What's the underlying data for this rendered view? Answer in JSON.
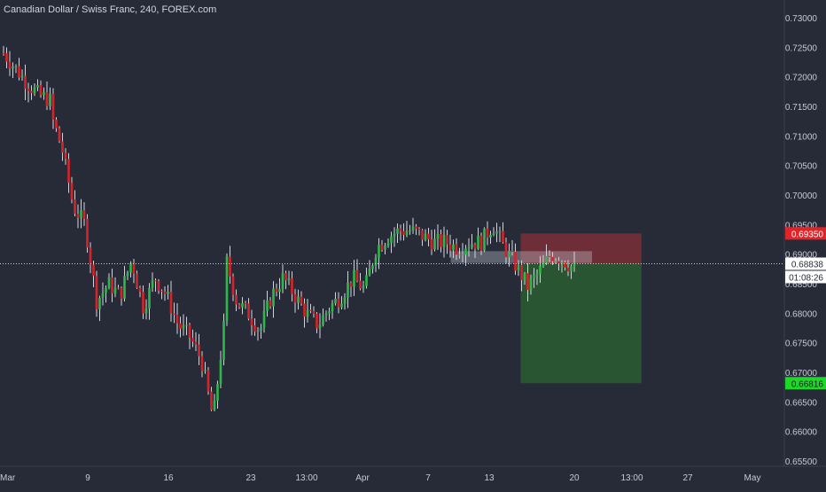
{
  "header": {
    "symbol_title": "Canadian Dollar / Swiss Franc, 240, FOREX.com"
  },
  "colors": {
    "background": "#272b38",
    "axis_text": "#c7cad3",
    "bull": "#2fb84a",
    "bear": "#d6252a",
    "wick": "#d1d4dc",
    "stop_zone": "#7a2f38",
    "target_zone": "#2a5a33",
    "stop_label": "#e0242a",
    "target_label": "#1fd62a",
    "price_line": "#d1d4dc"
  },
  "price_axis": {
    "ticks": [
      "0.73000",
      "0.72500",
      "0.72000",
      "0.71500",
      "0.71000",
      "0.70500",
      "0.70000",
      "0.69500",
      "0.69000",
      "0.68500",
      "0.68000",
      "0.67500",
      "0.67000",
      "0.66500",
      "0.66000",
      "0.65500"
    ],
    "current_price": "0.68838",
    "countdown": "01:08:26",
    "stop_label": "0.69350",
    "target_label": "0.66816"
  },
  "time_axis": {
    "ticks": [
      "Mar",
      "9",
      "16",
      "23",
      "13:00",
      "Apr",
      "7",
      "13",
      "20",
      "13:00",
      "27",
      "May"
    ]
  },
  "chart_data": {
    "type": "candlestick",
    "title": "Canadian Dollar / Swiss Franc, 240, FOREX.com",
    "ylim": [
      0.6525,
      0.733
    ],
    "x_range": [
      "2020-03-02",
      "2020-05-01"
    ],
    "current_price": 0.68838,
    "countdown": "01:08:26",
    "position": {
      "type": "short",
      "entry": 0.68838,
      "stop": 0.6935,
      "target": 0.66816
    },
    "support_resistance_zone": [
      0.6885,
      0.6905
    ],
    "swing_path": [
      [
        "2020-03-02",
        0.724
      ],
      [
        "2020-03-04",
        0.719
      ],
      [
        "2020-03-05",
        0.717
      ],
      [
        "2020-03-06",
        0.716
      ],
      [
        "2020-03-06",
        0.714
      ],
      [
        "2020-03-07",
        0.708
      ],
      [
        "2020-03-08",
        0.698
      ],
      [
        "2020-03-09",
        0.695
      ],
      [
        "2020-03-10",
        0.682
      ],
      [
        "2020-03-11",
        0.685
      ],
      [
        "2020-03-12",
        0.683
      ],
      [
        "2020-03-13",
        0.689
      ],
      [
        "2020-03-14",
        0.681
      ],
      [
        "2020-03-15",
        0.686
      ],
      [
        "2020-03-16",
        0.683
      ],
      [
        "2020-03-17",
        0.678
      ],
      [
        "2020-03-18",
        0.676
      ],
      [
        "2020-03-19",
        0.672
      ],
      [
        "2020-03-20",
        0.662
      ],
      [
        "2020-03-21",
        0.679
      ],
      [
        "2020-03-21",
        0.69
      ],
      [
        "2020-03-22",
        0.682
      ],
      [
        "2020-03-23",
        0.68
      ],
      [
        "2020-03-24",
        0.677
      ],
      [
        "2020-03-25",
        0.683
      ],
      [
        "2020-03-26",
        0.686
      ],
      [
        "2020-03-27",
        0.683
      ],
      [
        "2020-03-28",
        0.68
      ],
      [
        "2020-03-29",
        0.678
      ],
      [
        "2020-03-30",
        0.681
      ],
      [
        "2020-03-31",
        0.683
      ],
      [
        "2020-04-01",
        0.686
      ],
      [
        "2020-04-02",
        0.684
      ],
      [
        "2020-04-03",
        0.691
      ],
      [
        "2020-04-04",
        0.693
      ],
      [
        "2020-04-05",
        0.694
      ],
      [
        "2020-04-06",
        0.694
      ],
      [
        "2020-04-07",
        0.693
      ],
      [
        "2020-04-08",
        0.692
      ],
      [
        "2020-04-09",
        0.692
      ],
      [
        "2020-04-10",
        0.691
      ],
      [
        "2020-04-11",
        0.692
      ],
      [
        "2020-04-12",
        0.692
      ],
      [
        "2020-04-13",
        0.695
      ],
      [
        "2020-04-14",
        0.691
      ],
      [
        "2020-04-15",
        0.688
      ],
      [
        "2020-04-16",
        0.6845
      ],
      [
        "2020-04-17",
        0.687
      ],
      [
        "2020-04-18",
        0.69
      ],
      [
        "2020-04-19",
        0.689
      ],
      [
        "2020-04-20",
        0.6875
      ]
    ]
  }
}
